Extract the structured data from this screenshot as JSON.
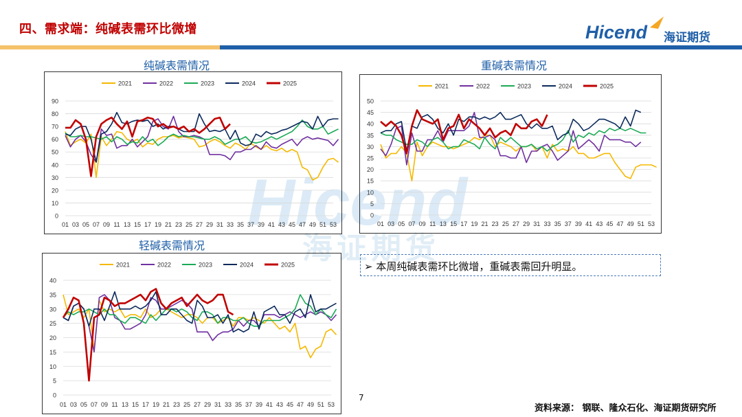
{
  "header": {
    "title": "四、需求端：纯碱表需环比微增",
    "logo_text": "Hicend",
    "logo_cn": "海证期货"
  },
  "watermark": {
    "text": "Hicend",
    "cn": "海证期货"
  },
  "note": {
    "bullet": "➢",
    "text": "本周纯碱表需环比微增，重碱表需回升明显。"
  },
  "footer": {
    "page": "7",
    "source": "资料来源：  钢联、隆众石化、海证期货研究所"
  },
  "colors": {
    "2021": "#f5b800",
    "2022": "#7030a0",
    "2023": "#1aaa55",
    "2024": "#0b2a5c",
    "2025": "#c00000"
  },
  "chart_data": [
    {
      "id": "soda",
      "type": "line",
      "title": "纯碱表需情况",
      "ylim": [
        0,
        90
      ],
      "yticks": [
        0,
        10,
        20,
        30,
        40,
        50,
        60,
        70,
        80,
        90
      ],
      "xtick_labels": [
        "01",
        "03",
        "05",
        "07",
        "09",
        "11",
        "13",
        "15",
        "17",
        "19",
        "21",
        "23",
        "25",
        "27",
        "29",
        "31",
        "33",
        "35",
        "37",
        "39",
        "41",
        "43",
        "45",
        "47",
        "49",
        "51",
        "53"
      ],
      "series": [
        {
          "name": "2021",
          "values": [
            66,
            55,
            58,
            60,
            57,
            64,
            30,
            62,
            55,
            60,
            66,
            65,
            60,
            58,
            60,
            54,
            57,
            56,
            60,
            62,
            62,
            63,
            61,
            62,
            61,
            60,
            54,
            55,
            58,
            60,
            58,
            55,
            53,
            57,
            55,
            52,
            57,
            54,
            52,
            55,
            52,
            51,
            53,
            50,
            52,
            50,
            38,
            36,
            28,
            30,
            38,
            44,
            45,
            42
          ]
        },
        {
          "name": "2022",
          "values": [
            63,
            54,
            60,
            63,
            58,
            48,
            42,
            68,
            63,
            64,
            53,
            55,
            55,
            60,
            54,
            58,
            62,
            74,
            76,
            70,
            68,
            78,
            66,
            62,
            62,
            63,
            62,
            60,
            48,
            48,
            48,
            47,
            44,
            50,
            50,
            52,
            52,
            55,
            52,
            58,
            54,
            53,
            56,
            58,
            60,
            55,
            60,
            62,
            60,
            61,
            60,
            59,
            55,
            60
          ]
        },
        {
          "name": "2023",
          "values": [
            65,
            62,
            62,
            63,
            62,
            62,
            61,
            60,
            62,
            58,
            62,
            60,
            56,
            58,
            57,
            62,
            58,
            60,
            55,
            58,
            62,
            64,
            62,
            63,
            62,
            62,
            61,
            60,
            60,
            62,
            60,
            56,
            58,
            60,
            60,
            62,
            58,
            57,
            58,
            60,
            62,
            60,
            62,
            64,
            66,
            70,
            75,
            70,
            68,
            68,
            70,
            64,
            66,
            68
          ]
        },
        {
          "name": "2024",
          "values": [
            64,
            63,
            68,
            70,
            70,
            60,
            42,
            64,
            66,
            72,
            81,
            73,
            72,
            74,
            75,
            74,
            75,
            70,
            72,
            68,
            70,
            70,
            68,
            66,
            66,
            66,
            80,
            72,
            66,
            67,
            66,
            68,
            60,
            67,
            57,
            55,
            56,
            64,
            62,
            66,
            64,
            65,
            67,
            68,
            70,
            72,
            74,
            73,
            68,
            78,
            70,
            75,
            76,
            76
          ]
        },
        {
          "name": "2025",
          "values": [
            69,
            69,
            75,
            72,
            60,
            31,
            62,
            72,
            75,
            77,
            72,
            68,
            74,
            62,
            74,
            75,
            77,
            76,
            70,
            72,
            69,
            70,
            68,
            70,
            66,
            68,
            65,
            68,
            72,
            76,
            77,
            68,
            72
          ]
        }
      ]
    },
    {
      "id": "heavy",
      "type": "line",
      "title": "重碱表需情况",
      "ylim": [
        0,
        50
      ],
      "yticks": [
        0,
        5,
        10,
        15,
        20,
        25,
        30,
        35,
        40,
        45,
        50
      ],
      "xtick_labels": [
        "01",
        "03",
        "05",
        "07",
        "09",
        "11",
        "13",
        "15",
        "17",
        "19",
        "21",
        "23",
        "25",
        "27",
        "29",
        "31",
        "33",
        "35",
        "37",
        "39",
        "41",
        "43",
        "45",
        "47",
        "49",
        "51",
        "53"
      ],
      "series": [
        {
          "name": "2021",
          "values": [
            31,
            25,
            27,
            27,
            30,
            27,
            15,
            32,
            26,
            30,
            32,
            31,
            30,
            30,
            29,
            30,
            31,
            32,
            34,
            33,
            35,
            35,
            30,
            32,
            31,
            30,
            28,
            30,
            30,
            31,
            28,
            30,
            25,
            31,
            28,
            29,
            28,
            30,
            27,
            27,
            25,
            25,
            26,
            27,
            27,
            23,
            20,
            17,
            16,
            21,
            22,
            22,
            22,
            21
          ]
        },
        {
          "name": "2022",
          "values": [
            29,
            26,
            31,
            38,
            39,
            22,
            36,
            28,
            28,
            33,
            33,
            37,
            32,
            37,
            37,
            37,
            37,
            39,
            45,
            34,
            34,
            35,
            33,
            26,
            26,
            25,
            25,
            30,
            23,
            28,
            28,
            30,
            31,
            28,
            24,
            26,
            28,
            37,
            29,
            31,
            33,
            31,
            28,
            35,
            33,
            33,
            33,
            32,
            32,
            30,
            32
          ]
        },
        {
          "name": "2023",
          "values": [
            36,
            35,
            35,
            33,
            32,
            31,
            31,
            33,
            32,
            30,
            33,
            34,
            32,
            29,
            30,
            30,
            33,
            32,
            31,
            29,
            34,
            31,
            29,
            34,
            32,
            34,
            32,
            30,
            30,
            31,
            29,
            30,
            28,
            30,
            31,
            33,
            37,
            32,
            35,
            34,
            36,
            35,
            37,
            36,
            38,
            37,
            38,
            37,
            38,
            37,
            36,
            36
          ]
        },
        {
          "name": "2024",
          "values": [
            36,
            37,
            37,
            40,
            41,
            28,
            39,
            38,
            43,
            44,
            42,
            38,
            36,
            40,
            35,
            42,
            41,
            43,
            43,
            42,
            43,
            42,
            43,
            45,
            42,
            42,
            43,
            44,
            40,
            38,
            40,
            38,
            38,
            39,
            33,
            35,
            36,
            42,
            40,
            37,
            38,
            40,
            42,
            42,
            41,
            40,
            38,
            43,
            39,
            46,
            45
          ]
        },
        {
          "name": "2025",
          "values": [
            41,
            39,
            41,
            39,
            35,
            27,
            39,
            46,
            42,
            41,
            40,
            42,
            33,
            38,
            39,
            44,
            38,
            42,
            40,
            38,
            35,
            38,
            34,
            36,
            37,
            35,
            40,
            38,
            38,
            41,
            42,
            39,
            44
          ]
        }
      ]
    },
    {
      "id": "light",
      "type": "line",
      "title": "轻碱表需情况",
      "ylim": [
        0,
        40
      ],
      "yticks": [
        0,
        5,
        10,
        15,
        20,
        25,
        30,
        35,
        40
      ],
      "xtick_labels": [
        "01",
        "03",
        "05",
        "07",
        "09",
        "11",
        "13",
        "15",
        "17",
        "19",
        "21",
        "23",
        "25",
        "27",
        "29",
        "31",
        "33",
        "35",
        "37",
        "39",
        "41",
        "43",
        "45",
        "47",
        "49",
        "51",
        "53"
      ],
      "series": [
        {
          "name": "2021",
          "values": [
            35,
            28,
            29,
            30,
            27,
            30,
            16,
            33,
            29,
            30,
            29,
            30,
            27,
            28,
            28,
            27,
            30,
            27,
            28,
            30,
            30,
            29,
            28,
            27,
            28,
            28,
            27,
            25,
            27,
            27,
            25,
            26,
            27,
            24,
            27,
            27,
            26,
            27,
            26,
            25,
            27,
            25,
            23,
            24,
            22,
            25,
            16,
            17,
            13,
            16,
            17,
            22,
            23,
            21
          ]
        },
        {
          "name": "2022",
          "values": [
            27,
            26,
            31,
            32,
            30,
            24,
            15,
            34,
            35,
            33,
            27,
            26,
            23,
            23,
            24,
            25,
            28,
            34,
            33,
            30,
            30,
            31,
            32,
            33,
            32,
            30,
            22,
            22,
            22,
            19,
            21,
            22,
            22,
            23,
            26,
            24,
            26,
            26,
            24,
            28,
            28,
            28,
            27,
            28,
            29,
            28,
            27,
            28,
            29,
            28,
            29,
            28,
            26,
            28
          ]
        },
        {
          "name": "2023",
          "values": [
            27,
            29,
            28,
            29,
            29,
            30,
            29,
            28,
            30,
            28,
            28,
            26,
            25,
            27,
            27,
            26,
            25,
            28,
            26,
            28,
            30,
            30,
            29,
            30,
            29,
            27,
            26,
            29,
            29,
            28,
            25,
            27,
            27,
            26,
            26,
            27,
            25,
            24,
            24,
            26,
            26,
            26,
            26,
            27,
            28,
            30,
            35,
            32,
            31,
            28,
            30,
            28,
            27,
            30
          ]
        },
        {
          "name": "2024",
          "values": [
            27,
            26,
            31,
            32,
            30,
            24,
            30,
            30,
            26,
            31,
            36,
            30,
            30,
            30,
            31,
            30,
            31,
            33,
            36,
            28,
            28,
            30,
            30,
            28,
            26,
            25,
            33,
            31,
            27,
            27,
            28,
            25,
            28,
            22,
            23,
            22,
            23,
            29,
            23,
            29,
            30,
            31,
            28,
            28,
            25,
            29,
            30,
            27,
            35,
            29,
            30,
            30,
            31,
            32
          ]
        },
        {
          "name": "2025",
          "values": [
            27,
            30,
            34,
            33,
            25,
            5,
            27,
            28,
            34,
            33,
            31,
            32,
            32,
            33,
            34,
            35,
            33,
            36,
            37,
            32,
            30,
            32,
            33,
            34,
            31,
            33,
            35,
            33,
            32,
            33,
            35,
            35,
            29,
            28
          ]
        }
      ]
    }
  ]
}
